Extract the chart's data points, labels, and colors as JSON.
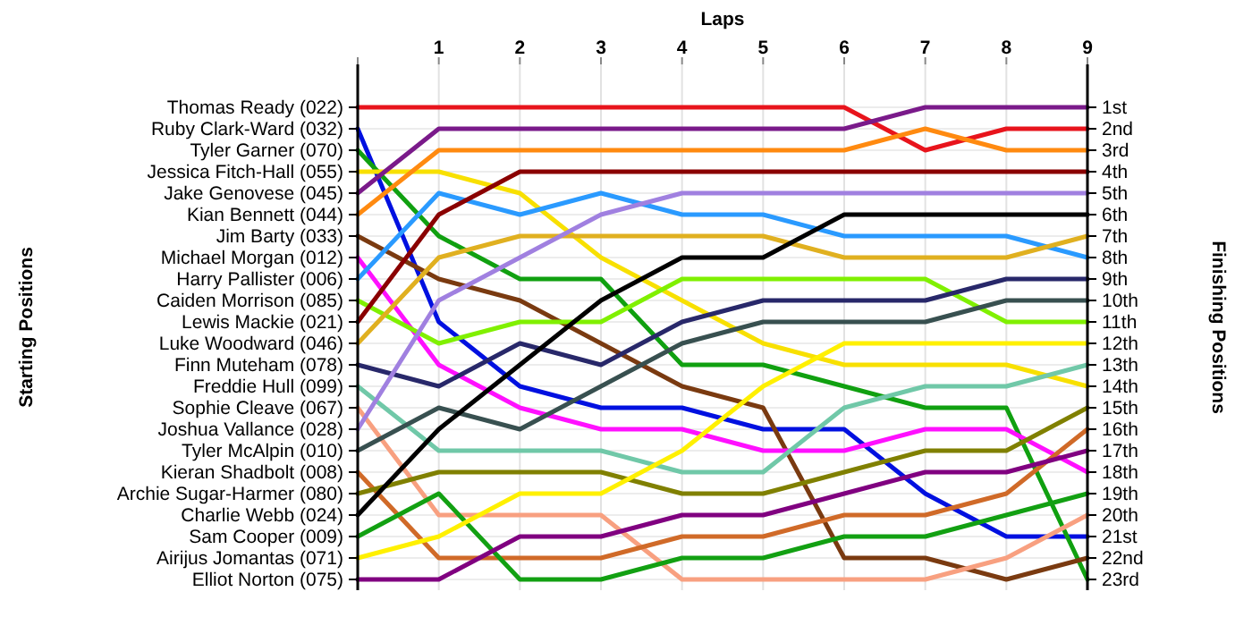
{
  "chart_data": {
    "type": "line",
    "xlabel": "Laps",
    "annotations": [
      "Starting Positions"
    ],
    "y2label": "Finishing Positions",
    "x": [
      0,
      1,
      2,
      3,
      4,
      5,
      6,
      7,
      8,
      9
    ],
    "xlim": [
      0,
      9
    ],
    "xticks": [
      {
        "value": 0,
        "label": null
      },
      1,
      2,
      3,
      4,
      5,
      6,
      7,
      8,
      9
    ],
    "y_categories": [
      "Thomas Ready (022)",
      "Ruby Clark-Ward (032)",
      "Tyler Garner (070)",
      "Jessica Fitch-Hall (055)",
      "Jake Genovese (045)",
      "Kian Bennett (044)",
      "Jim Barty (033)",
      "Michael Morgan (012)",
      "Harry Pallister (006)",
      "Caiden Morrison (085)",
      "Lewis Mackie (021)",
      "Luke Woodward (046)",
      "Finn Muteham (078)",
      "Freddie Hull (099)",
      "Sophie Cleave (067)",
      "Joshua Vallance (028)",
      "Tyler McAlpin (010)",
      "Kieran Shadbolt (008)",
      "Archie Sugar-Harmer (080)",
      "Charlie Webb (024)",
      "Sam Cooper (009)",
      "Airijus Jomantas (071)",
      "Elliot Norton (075)"
    ],
    "y2lim": [
      23.5,
      -1
    ],
    "y2ticks": [
      {
        "value": 1,
        "label": "1st"
      },
      {
        "value": 2,
        "label": "2nd"
      },
      {
        "value": 3,
        "label": "3rd"
      },
      {
        "value": 4,
        "label": "4th"
      },
      {
        "value": 5,
        "label": "5th"
      },
      {
        "value": 6,
        "label": "6th"
      },
      {
        "value": 7,
        "label": "7th"
      },
      {
        "value": 8,
        "label": "8th"
      },
      {
        "value": 9,
        "label": "9th"
      },
      {
        "value": 10,
        "label": "10th"
      },
      {
        "value": 11,
        "label": "11th"
      },
      {
        "value": 12,
        "label": "12th"
      },
      {
        "value": 13,
        "label": "13th"
      },
      {
        "value": 14,
        "label": "14th"
      },
      {
        "value": 15,
        "label": "15th"
      },
      {
        "value": 16,
        "label": "16th"
      },
      {
        "value": 17,
        "label": "17th"
      },
      {
        "value": 18,
        "label": "18th"
      },
      {
        "value": 19,
        "label": "19th"
      },
      {
        "value": 20,
        "label": "20th"
      },
      {
        "value": 21,
        "label": "21st"
      },
      {
        "value": 22,
        "label": "22nd"
      },
      {
        "value": 23,
        "label": "23rd"
      }
    ],
    "grid": true,
    "series": [
      {
        "axis": "y2",
        "color": "#e8141c",
        "values": [
          1,
          1,
          1,
          1,
          1,
          1,
          1,
          3,
          2,
          2
        ]
      },
      {
        "axis": "y2",
        "color": "#0010e0",
        "values": [
          2,
          11,
          14,
          15,
          15,
          16,
          16,
          19,
          21,
          21
        ]
      },
      {
        "axis": "y2",
        "color": "#10a010",
        "values": [
          3,
          7,
          9,
          9,
          13,
          13,
          14,
          15,
          15,
          23
        ]
      },
      {
        "axis": "y2",
        "color": "#f8e000",
        "values": [
          4,
          4,
          5,
          8,
          10,
          12,
          13,
          13,
          13,
          14
        ]
      },
      {
        "axis": "y2",
        "color": "#7a1a8a",
        "values": [
          5,
          2,
          2,
          2,
          2,
          2,
          2,
          1,
          1,
          1
        ]
      },
      {
        "axis": "y2",
        "color": "#ff8a10",
        "values": [
          6,
          3,
          3,
          3,
          3,
          3,
          3,
          2,
          3,
          3
        ]
      },
      {
        "axis": "y2",
        "color": "#7a3a10",
        "values": [
          7,
          9,
          10,
          12,
          14,
          15,
          22,
          22,
          23,
          22
        ]
      },
      {
        "axis": "y2",
        "color": "#ff10ff",
        "values": [
          8,
          13,
          15,
          16,
          16,
          17,
          17,
          16,
          16,
          18
        ]
      },
      {
        "axis": "y2",
        "color": "#2a9aff",
        "values": [
          9,
          5,
          6,
          5,
          6,
          6,
          7,
          7,
          7,
          8
        ]
      },
      {
        "axis": "y2",
        "color": "#80f000",
        "values": [
          10,
          12,
          11,
          11,
          9,
          9,
          9,
          9,
          11,
          11
        ]
      },
      {
        "axis": "y2",
        "color": "#8a0000",
        "values": [
          11,
          6,
          4,
          4,
          4,
          4,
          4,
          4,
          4,
          4
        ]
      },
      {
        "axis": "y2",
        "color": "#e0b020",
        "values": [
          12,
          8,
          7,
          7,
          7,
          7,
          8,
          8,
          8,
          7
        ]
      },
      {
        "axis": "y2",
        "color": "#28286a",
        "values": [
          13,
          14,
          12,
          13,
          11,
          10,
          10,
          10,
          9,
          9
        ]
      },
      {
        "axis": "y2",
        "color": "#70c8a8",
        "values": [
          14,
          17,
          17,
          17,
          18,
          18,
          15,
          14,
          14,
          13
        ]
      },
      {
        "axis": "y2",
        "color": "#f8a080",
        "values": [
          15,
          20,
          20,
          20,
          23,
          23,
          23,
          23,
          22,
          20
        ]
      },
      {
        "axis": "y2",
        "color": "#a080e0",
        "values": [
          16,
          10,
          8,
          6,
          5,
          5,
          5,
          5,
          5,
          5
        ]
      },
      {
        "axis": "y2",
        "color": "#385050",
        "values": [
          17,
          15,
          16,
          14,
          12,
          11,
          11,
          11,
          10,
          10
        ]
      },
      {
        "axis": "y2",
        "color": "#d06a28",
        "values": [
          18,
          22,
          22,
          22,
          21,
          21,
          20,
          20,
          19,
          16
        ]
      },
      {
        "axis": "y2",
        "color": "#808000",
        "values": [
          19,
          18,
          18,
          18,
          19,
          19,
          18,
          17,
          17,
          15
        ]
      },
      {
        "axis": "y2",
        "color": "#000000",
        "values": [
          20,
          16,
          13,
          10,
          8,
          8,
          6,
          6,
          6,
          6
        ]
      },
      {
        "axis": "y2",
        "color": "#12a012",
        "values": [
          21,
          19,
          23,
          23,
          22,
          22,
          21,
          21,
          20,
          19
        ]
      },
      {
        "axis": "y2",
        "color": "#fff000",
        "values": [
          22,
          21,
          19,
          19,
          17,
          14,
          12,
          12,
          12,
          12
        ]
      },
      {
        "axis": "y2",
        "color": "#800080",
        "values": [
          23,
          23,
          21,
          21,
          20,
          20,
          19,
          18,
          18,
          17
        ]
      }
    ]
  }
}
